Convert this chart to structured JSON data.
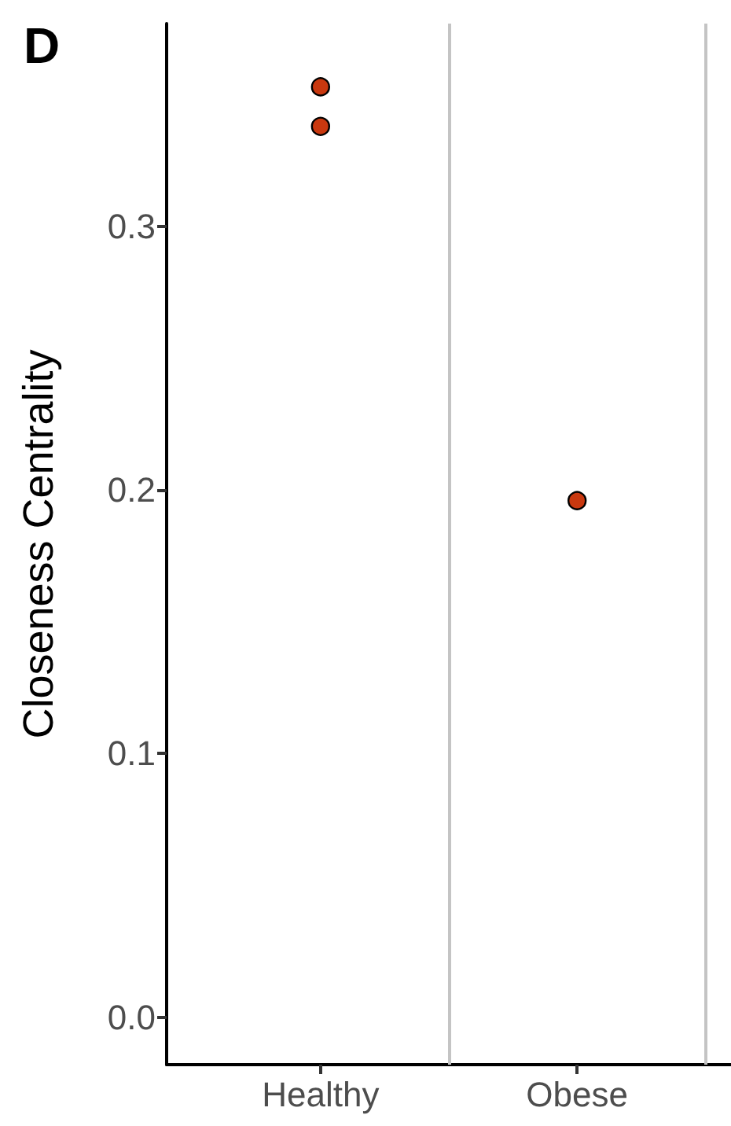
{
  "chart_data": {
    "type": "scatter",
    "title": "D",
    "ylabel": "Closeness Centrality",
    "categories": [
      "Healthy",
      "Obese"
    ],
    "series": [
      {
        "color": "#c9380f",
        "values": [
          0.353,
          0.196
        ]
      },
      {
        "color": "#c9380f",
        "values": [
          0.338,
          null
        ]
      }
    ],
    "marker": "circle",
    "ylim": [
      -0.018,
      0.377
    ],
    "yticks": [
      {
        "value": 0,
        "label": "0.0"
      },
      0.1,
      0.2,
      0.3
    ],
    "grid": false
  }
}
